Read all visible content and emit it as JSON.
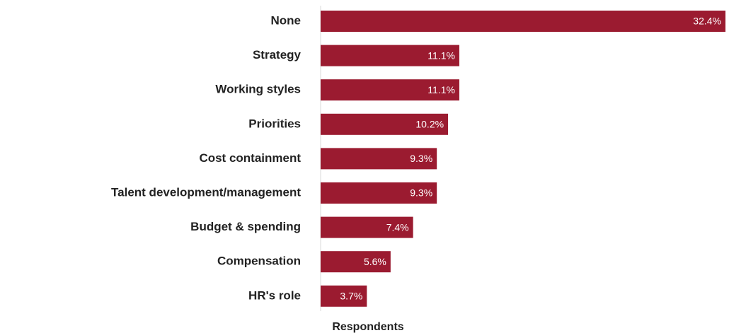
{
  "chart_data": {
    "type": "bar",
    "orientation": "horizontal",
    "categories": [
      "None",
      "Strategy",
      "Working styles",
      "Priorities",
      "Cost containment",
      "Talent development/management",
      "Budget & spending",
      "Compensation",
      "HR's role"
    ],
    "values": [
      32.4,
      11.1,
      11.1,
      10.2,
      9.3,
      9.3,
      7.4,
      5.6,
      3.7
    ],
    "value_labels": [
      "32.4%",
      "11.1%",
      "11.1%",
      "10.2%",
      "9.3%",
      "9.3%",
      "7.4%",
      "5.6%",
      "3.7%"
    ],
    "color": "#9b1b30",
    "xlabel": "Respondents"
  }
}
